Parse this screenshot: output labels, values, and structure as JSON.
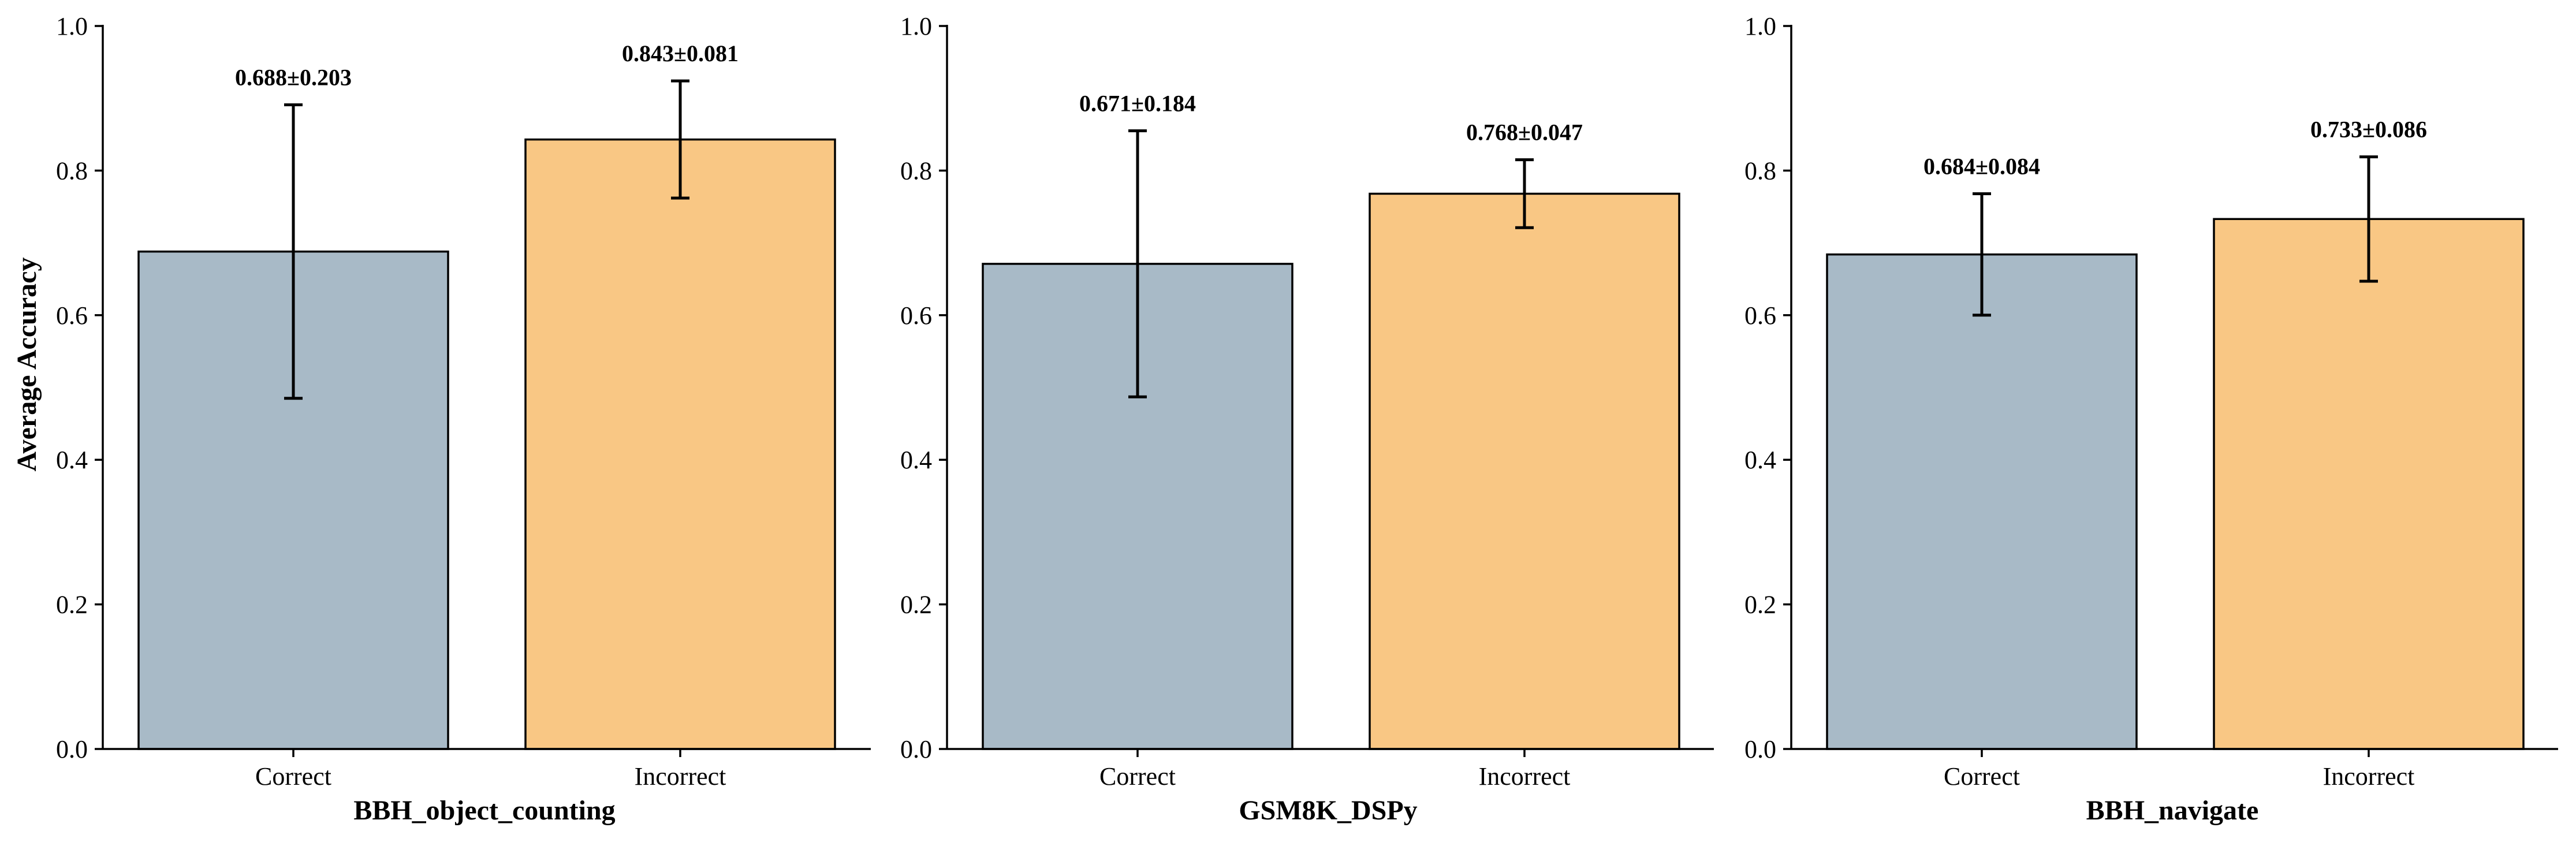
{
  "colors": {
    "Correct": "#a8bac7",
    "Incorrect": "#f9c784"
  },
  "ylabel": "Average Accuracy",
  "yticks": [
    "0.0",
    "0.2",
    "0.4",
    "0.6",
    "0.8",
    "1.0"
  ],
  "chart_data": [
    {
      "type": "bar",
      "xlabel": "BBH_object_counting",
      "ylabel": "Average Accuracy",
      "ylim": [
        0,
        1.0
      ],
      "categories": [
        "Correct",
        "Incorrect"
      ],
      "values": [
        0.688,
        0.843
      ],
      "errors": [
        0.203,
        0.081
      ],
      "data_labels": [
        "0.688±0.203",
        "0.843±0.081"
      ],
      "grid": false
    },
    {
      "type": "bar",
      "xlabel": "GSM8K_DSPy",
      "ylabel": "",
      "ylim": [
        0,
        1.0
      ],
      "categories": [
        "Correct",
        "Incorrect"
      ],
      "values": [
        0.671,
        0.768
      ],
      "errors": [
        0.184,
        0.047
      ],
      "data_labels": [
        "0.671±0.184",
        "0.768±0.047"
      ],
      "grid": false
    },
    {
      "type": "bar",
      "xlabel": "BBH_navigate",
      "ylabel": "",
      "ylim": [
        0,
        1.0
      ],
      "categories": [
        "Correct",
        "Incorrect"
      ],
      "values": [
        0.684,
        0.733
      ],
      "errors": [
        0.084,
        0.086
      ],
      "data_labels": [
        "0.684±0.084",
        "0.733±0.086"
      ],
      "grid": false
    }
  ]
}
